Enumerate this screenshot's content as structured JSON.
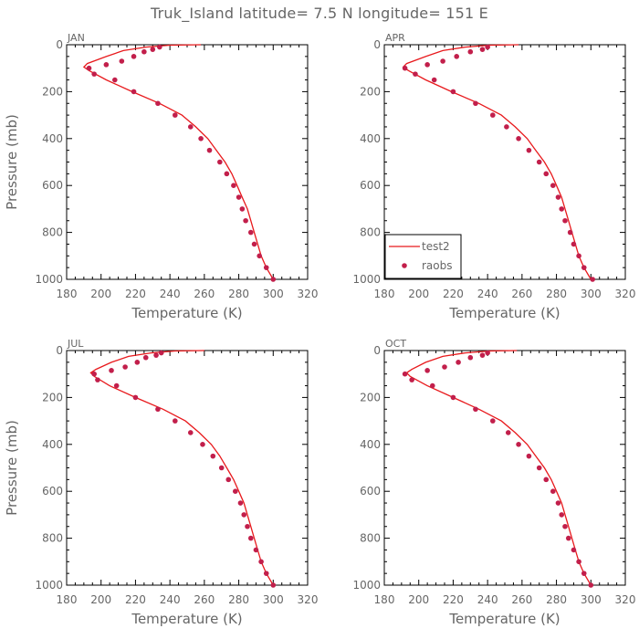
{
  "figure": {
    "title": "Truk_Island  latitude= 7.5 N longitude= 151 E",
    "colors": {
      "model_line": "#e8191c",
      "obs_marker": "#c21f4b",
      "axes": "#000000",
      "text": "#666666"
    }
  },
  "chart_data": [
    {
      "type": "line",
      "panel_label": "JAN",
      "xlabel": "Temperature (K)",
      "ylabel": "Pressure (mb)",
      "xlim": [
        180,
        320
      ],
      "ylim": [
        1000,
        0
      ],
      "y_inverted": true,
      "xticks": [
        180,
        200,
        220,
        240,
        260,
        280,
        300,
        320
      ],
      "yticks": [
        0,
        200,
        400,
        600,
        800,
        1000
      ],
      "grid": false,
      "series": [
        {
          "name": "test2",
          "kind": "line",
          "points": [
            [
              258,
              0
            ],
            [
              240,
              2
            ],
            [
              226,
              10
            ],
            [
              213,
              25
            ],
            [
              203,
              50
            ],
            [
              192,
              80
            ],
            [
              190,
              95
            ],
            [
              193,
              110
            ],
            [
              203,
              150
            ],
            [
              218,
              200
            ],
            [
              234,
              250
            ],
            [
              247,
              300
            ],
            [
              255,
              350
            ],
            [
              262,
              400
            ],
            [
              267,
              450
            ],
            [
              272,
              500
            ],
            [
              276,
              550
            ],
            [
              279,
              600
            ],
            [
              282,
              650
            ],
            [
              285,
              700
            ],
            [
              287,
              750
            ],
            [
              289,
              800
            ],
            [
              291,
              850
            ],
            [
              293,
              900
            ],
            [
              296,
              950
            ],
            [
              300,
              1000
            ]
          ]
        },
        {
          "name": "raobs",
          "kind": "scatter",
          "points": [
            [
              234,
              10
            ],
            [
              230,
              20
            ],
            [
              225,
              30
            ],
            [
              219,
              50
            ],
            [
              212,
              70
            ],
            [
              203,
              85
            ],
            [
              193,
              100
            ],
            [
              196,
              125
            ],
            [
              208,
              150
            ],
            [
              219,
              200
            ],
            [
              233,
              250
            ],
            [
              243,
              300
            ],
            [
              252,
              350
            ],
            [
              258,
              400
            ],
            [
              263,
              450
            ],
            [
              269,
              500
            ],
            [
              273,
              550
            ],
            [
              277,
              600
            ],
            [
              280,
              650
            ],
            [
              282,
              700
            ],
            [
              284,
              750
            ],
            [
              287,
              800
            ],
            [
              289,
              850
            ],
            [
              292,
              900
            ],
            [
              296,
              950
            ],
            [
              300,
              1000
            ]
          ]
        }
      ]
    },
    {
      "type": "line",
      "panel_label": "APR",
      "xlabel": "Temperature (K)",
      "ylabel": "",
      "xlim": [
        180,
        320
      ],
      "ylim": [
        1000,
        0
      ],
      "y_inverted": true,
      "xticks": [
        180,
        200,
        220,
        240,
        260,
        280,
        300,
        320
      ],
      "yticks": [
        0,
        200,
        400,
        600,
        800,
        1000
      ],
      "grid": false,
      "legend": {
        "position": "bottom-left",
        "entries": [
          "test2",
          "raobs"
        ]
      },
      "series": [
        {
          "name": "test2",
          "kind": "line",
          "points": [
            [
              258,
              0
            ],
            [
              241,
              2
            ],
            [
              227,
              10
            ],
            [
              214,
              25
            ],
            [
              204,
              50
            ],
            [
              193,
              80
            ],
            [
              191,
              95
            ],
            [
              194,
              110
            ],
            [
              204,
              150
            ],
            [
              219,
              200
            ],
            [
              235,
              250
            ],
            [
              248,
              300
            ],
            [
              256,
              350
            ],
            [
              263,
              400
            ],
            [
              268,
              450
            ],
            [
              273,
              500
            ],
            [
              277,
              550
            ],
            [
              280,
              600
            ],
            [
              283,
              650
            ],
            [
              285,
              700
            ],
            [
              287,
              750
            ],
            [
              289,
              800
            ],
            [
              291,
              850
            ],
            [
              293,
              900
            ],
            [
              296,
              950
            ],
            [
              300,
              1000
            ]
          ]
        },
        {
          "name": "raobs",
          "kind": "scatter",
          "points": [
            [
              240,
              10
            ],
            [
              237,
              20
            ],
            [
              230,
              30
            ],
            [
              222,
              50
            ],
            [
              214,
              70
            ],
            [
              205,
              85
            ],
            [
              192,
              100
            ],
            [
              198,
              125
            ],
            [
              209,
              150
            ],
            [
              220,
              200
            ],
            [
              233,
              250
            ],
            [
              243,
              300
            ],
            [
              251,
              350
            ],
            [
              258,
              400
            ],
            [
              264,
              450
            ],
            [
              270,
              500
            ],
            [
              274,
              550
            ],
            [
              278,
              600
            ],
            [
              281,
              650
            ],
            [
              283,
              700
            ],
            [
              285,
              750
            ],
            [
              288,
              800
            ],
            [
              290,
              850
            ],
            [
              293,
              900
            ],
            [
              296,
              950
            ],
            [
              301,
              1000
            ]
          ]
        }
      ]
    },
    {
      "type": "line",
      "panel_label": "JUL",
      "xlabel": "Temperature (K)",
      "ylabel": "Pressure (mb)",
      "xlim": [
        180,
        320
      ],
      "ylim": [
        1000,
        0
      ],
      "y_inverted": true,
      "xticks": [
        180,
        200,
        220,
        240,
        260,
        280,
        300,
        320
      ],
      "yticks": [
        0,
        200,
        400,
        600,
        800,
        1000
      ],
      "grid": false,
      "series": [
        {
          "name": "test2",
          "kind": "line",
          "points": [
            [
              260,
              0
            ],
            [
              243,
              2
            ],
            [
              229,
              10
            ],
            [
              216,
              25
            ],
            [
              206,
              50
            ],
            [
              197,
              80
            ],
            [
              194,
              95
            ],
            [
              196,
              110
            ],
            [
              205,
              150
            ],
            [
              220,
              200
            ],
            [
              236,
              250
            ],
            [
              249,
              300
            ],
            [
              257,
              350
            ],
            [
              264,
              400
            ],
            [
              269,
              450
            ],
            [
              273,
              500
            ],
            [
              277,
              550
            ],
            [
              280,
              600
            ],
            [
              283,
              650
            ],
            [
              285,
              700
            ],
            [
              287,
              750
            ],
            [
              289,
              800
            ],
            [
              291,
              850
            ],
            [
              293,
              900
            ],
            [
              296,
              950
            ],
            [
              300,
              1000
            ]
          ]
        },
        {
          "name": "raobs",
          "kind": "scatter",
          "points": [
            [
              235,
              10
            ],
            [
              232,
              20
            ],
            [
              226,
              30
            ],
            [
              221,
              50
            ],
            [
              214,
              70
            ],
            [
              206,
              85
            ],
            [
              196,
              100
            ],
            [
              198,
              125
            ],
            [
              209,
              150
            ],
            [
              220,
              200
            ],
            [
              233,
              250
            ],
            [
              243,
              300
            ],
            [
              252,
              350
            ],
            [
              259,
              400
            ],
            [
              265,
              450
            ],
            [
              270,
              500
            ],
            [
              274,
              550
            ],
            [
              278,
              600
            ],
            [
              281,
              650
            ],
            [
              283,
              700
            ],
            [
              285,
              750
            ],
            [
              287,
              800
            ],
            [
              290,
              850
            ],
            [
              293,
              900
            ],
            [
              296,
              950
            ],
            [
              300,
              1000
            ]
          ]
        }
      ]
    },
    {
      "type": "line",
      "panel_label": "OCT",
      "xlabel": "Temperature (K)",
      "ylabel": "",
      "xlim": [
        180,
        320
      ],
      "ylim": [
        1000,
        0
      ],
      "y_inverted": true,
      "xticks": [
        180,
        200,
        220,
        240,
        260,
        280,
        300,
        320
      ],
      "yticks": [
        0,
        200,
        400,
        600,
        800,
        1000
      ],
      "grid": false,
      "series": [
        {
          "name": "test2",
          "kind": "line",
          "points": [
            [
              257,
              0
            ],
            [
              241,
              2
            ],
            [
              227,
              10
            ],
            [
              214,
              25
            ],
            [
              204,
              50
            ],
            [
              196,
              80
            ],
            [
              193,
              95
            ],
            [
              195,
              110
            ],
            [
              205,
              150
            ],
            [
              220,
              200
            ],
            [
              235,
              250
            ],
            [
              248,
              300
            ],
            [
              256,
              350
            ],
            [
              263,
              400
            ],
            [
              268,
              450
            ],
            [
              273,
              500
            ],
            [
              277,
              550
            ],
            [
              280,
              600
            ],
            [
              283,
              650
            ],
            [
              285,
              700
            ],
            [
              287,
              750
            ],
            [
              289,
              800
            ],
            [
              291,
              850
            ],
            [
              293,
              900
            ],
            [
              296,
              950
            ],
            [
              300,
              1000
            ]
          ]
        },
        {
          "name": "raobs",
          "kind": "scatter",
          "points": [
            [
              240,
              10
            ],
            [
              237,
              20
            ],
            [
              230,
              30
            ],
            [
              223,
              50
            ],
            [
              215,
              70
            ],
            [
              205,
              85
            ],
            [
              192,
              100
            ],
            [
              196,
              125
            ],
            [
              208,
              150
            ],
            [
              220,
              200
            ],
            [
              233,
              250
            ],
            [
              243,
              300
            ],
            [
              252,
              350
            ],
            [
              258,
              400
            ],
            [
              264,
              450
            ],
            [
              270,
              500
            ],
            [
              274,
              550
            ],
            [
              278,
              600
            ],
            [
              281,
              650
            ],
            [
              283,
              700
            ],
            [
              285,
              750
            ],
            [
              287,
              800
            ],
            [
              290,
              850
            ],
            [
              293,
              900
            ],
            [
              296,
              950
            ],
            [
              300,
              1000
            ]
          ]
        }
      ]
    }
  ]
}
